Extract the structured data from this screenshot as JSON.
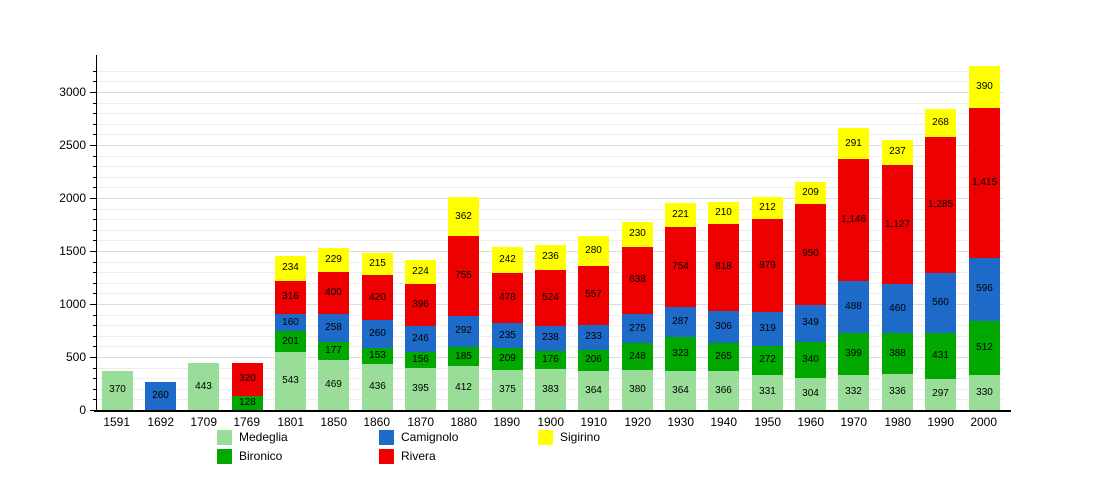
{
  "chart_data": {
    "type": "bar",
    "stacked": true,
    "title": "",
    "xlabel": "",
    "ylabel": "",
    "ylim": [
      0,
      3250
    ],
    "yticks": [
      0,
      500,
      1000,
      1500,
      2000,
      2500,
      3000
    ],
    "minor_grid_step": 100,
    "grid": "on",
    "legend_position": "bottom",
    "categories": [
      "1591",
      "1692",
      "1709",
      "1769",
      "1801",
      "1850",
      "1860",
      "1870",
      "1880",
      "1890",
      "1900",
      "1910",
      "1920",
      "1930",
      "1940",
      "1950",
      "1960",
      "1970",
      "1980",
      "1990",
      "2000"
    ],
    "series": [
      {
        "name": "Medeglia",
        "color": "#99dd99",
        "values": [
          370,
          0,
          443,
          0,
          543,
          469,
          436,
          395,
          412,
          375,
          383,
          364,
          380,
          364,
          366,
          331,
          304,
          332,
          336,
          297,
          330
        ]
      },
      {
        "name": "Bironico",
        "color": "#00a800",
        "values": [
          0,
          0,
          0,
          128,
          201,
          177,
          153,
          156,
          185,
          209,
          176,
          206,
          248,
          323,
          265,
          272,
          340,
          399,
          388,
          431,
          512
        ]
      },
      {
        "name": "Camignolo",
        "color": "#1e6ac8",
        "values": [
          0,
          260,
          0,
          0,
          160,
          258,
          260,
          246,
          292,
          235,
          238,
          233,
          275,
          287,
          306,
          319,
          349,
          488,
          460,
          560,
          596
        ]
      },
      {
        "name": "Rivera",
        "color": "#ee0000",
        "values": [
          0,
          0,
          0,
          320,
          316,
          400,
          420,
          396,
          755,
          478,
          524,
          557,
          638,
          754,
          818,
          879,
          950,
          1146,
          1127,
          1285,
          1415
        ]
      },
      {
        "name": "Sigirino",
        "color": "#ffff00",
        "values": [
          0,
          0,
          0,
          0,
          234,
          229,
          215,
          224,
          362,
          242,
          236,
          280,
          230,
          221,
          210,
          212,
          209,
          291,
          237,
          268,
          390
        ]
      }
    ],
    "legend_columns": [
      [
        "Medeglia",
        "Bironico"
      ],
      [
        "Camignolo",
        "Rivera"
      ],
      [
        "Sigirino"
      ]
    ]
  }
}
